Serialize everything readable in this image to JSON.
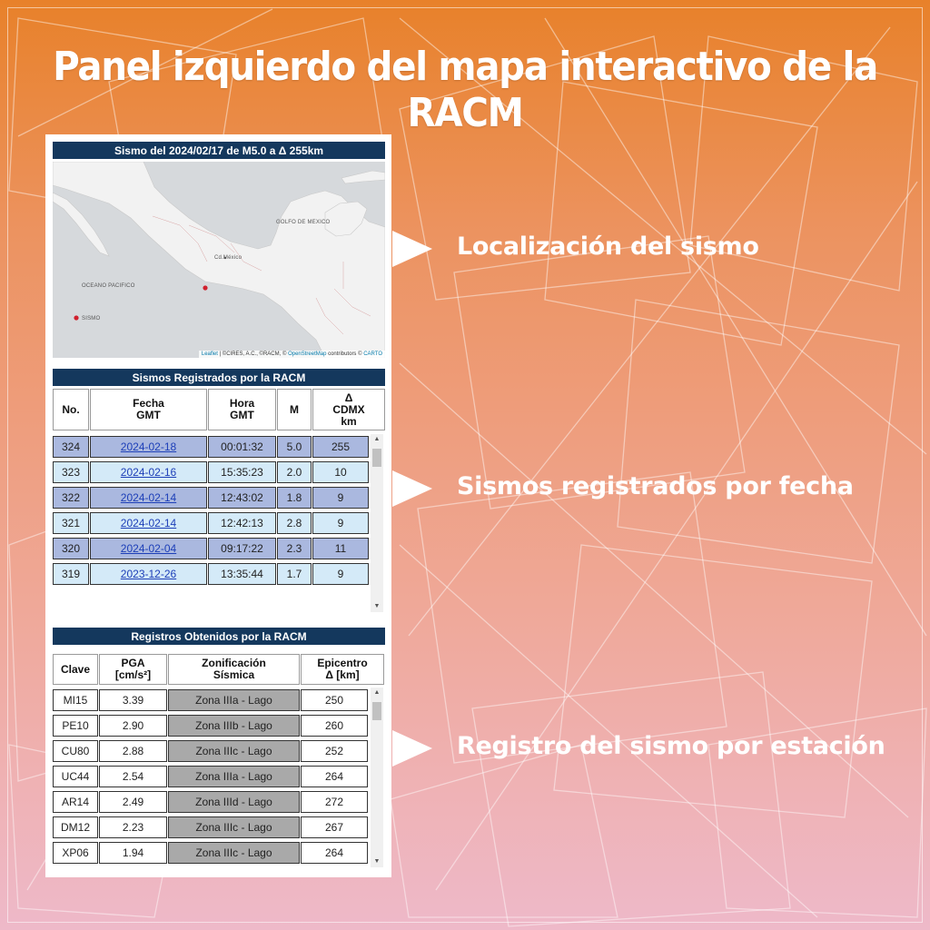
{
  "title": "Panel izquierdo del mapa interactivo de la RACM",
  "map_box": {
    "title": "Sismo del 2024/02/17 de M5.0 a Δ 255km",
    "labels": {
      "gulf": "GOLFO DE MEXICO",
      "city": "Cd.México",
      "ocean": "OCEANO PACIFICO",
      "legend": "SISMO"
    },
    "attribution": {
      "leaflet": "Leaflet",
      "middle": " | ©CIRES, A.C., ©RACM, © ",
      "osm": "OpenStreetMap",
      "contrib": " contributors © ",
      "carto": "CARTO"
    },
    "colors": {
      "land": "#f2f2f2",
      "water": "#d6d9dc",
      "epicenter": "#d0202e"
    }
  },
  "sismos": {
    "title": "Sismos Registrados por la RACM",
    "headers": {
      "no": "No.",
      "fecha_1": "Fecha",
      "fecha_2": "GMT",
      "hora_1": "Hora",
      "hora_2": "GMT",
      "m": "M",
      "delta_1": "Δ",
      "delta_2": "CDMX",
      "delta_3": "km"
    },
    "rows": [
      {
        "no": "324",
        "fecha": "2024-02-18",
        "hora": "00:01:32",
        "m": "5.0",
        "delta": "255"
      },
      {
        "no": "323",
        "fecha": "2024-02-16",
        "hora": "15:35:23",
        "m": "2.0",
        "delta": "10"
      },
      {
        "no": "322",
        "fecha": "2024-02-14",
        "hora": "12:43:02",
        "m": "1.8",
        "delta": "9"
      },
      {
        "no": "321",
        "fecha": "2024-02-14",
        "hora": "12:42:13",
        "m": "2.8",
        "delta": "9"
      },
      {
        "no": "320",
        "fecha": "2024-02-04",
        "hora": "09:17:22",
        "m": "2.3",
        "delta": "11"
      },
      {
        "no": "319",
        "fecha": "2023-12-26",
        "hora": "13:35:44",
        "m": "1.7",
        "delta": "9"
      }
    ]
  },
  "registros": {
    "title": "Registros Obtenidos por la RACM",
    "headers": {
      "clave": "Clave",
      "pga_1": "PGA",
      "pga_2": "[cm/s²]",
      "zona_1": "Zonificación",
      "zona_2": "Sísmica",
      "epi_1": "Epicentro",
      "epi_2": "Δ [km]"
    },
    "rows": [
      {
        "clave": "MI15",
        "pga": "3.39",
        "zona": "Zona IIIa - Lago",
        "epi": "250"
      },
      {
        "clave": "PE10",
        "pga": "2.90",
        "zona": "Zona IIIb - Lago",
        "epi": "260"
      },
      {
        "clave": "CU80",
        "pga": "2.88",
        "zona": "Zona IIIc - Lago",
        "epi": "252"
      },
      {
        "clave": "UC44",
        "pga": "2.54",
        "zona": "Zona IIIa - Lago",
        "epi": "264"
      },
      {
        "clave": "AR14",
        "pga": "2.49",
        "zona": "Zona IIId - Lago",
        "epi": "272"
      },
      {
        "clave": "DM12",
        "pga": "2.23",
        "zona": "Zona IIIc - Lago",
        "epi": "267"
      },
      {
        "clave": "XP06",
        "pga": "1.94",
        "zona": "Zona IIIc - Lago",
        "epi": "264"
      }
    ]
  },
  "callouts": {
    "localizacion": "Localización del sismo",
    "por_fecha": "Sismos registrados por fecha",
    "por_estacion": "Registro del sismo por estación"
  },
  "colors": {
    "header_bar": "#14385d",
    "row_dark": "#aab8df",
    "row_light": "#d4eaf8",
    "zone_gray": "#a9a9a9",
    "link": "#1d3fb8"
  },
  "icons": {
    "scroll_up": "arrow-up-icon",
    "scroll_down": "arrow-down-icon",
    "pointer": "triangle-pointer-icon"
  }
}
